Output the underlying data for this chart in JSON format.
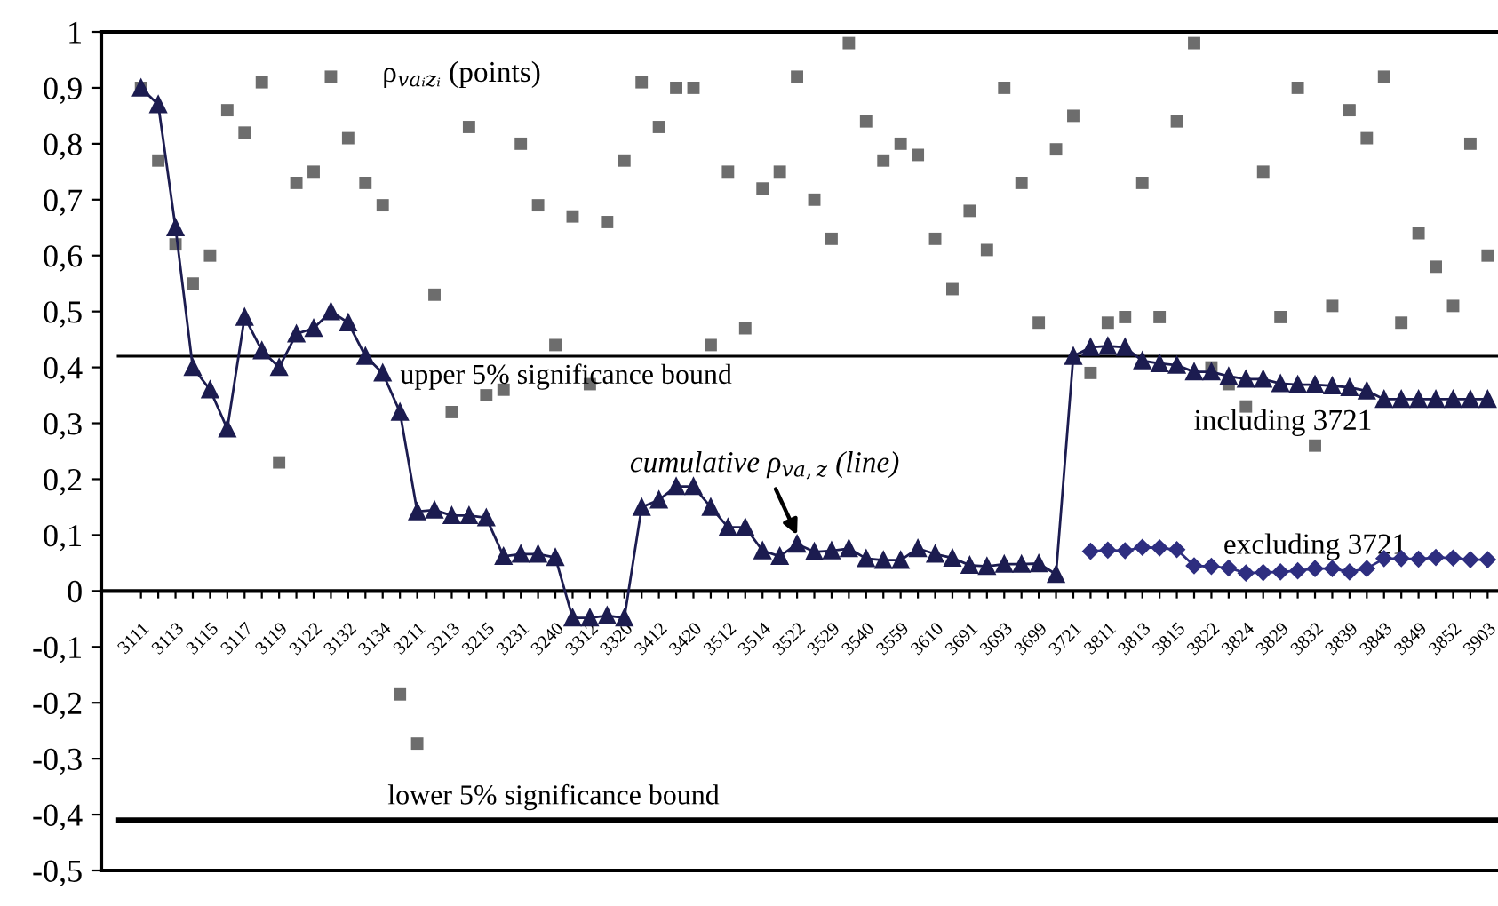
{
  "chart_data": {
    "type": "line",
    "categories": [
      "3111",
      null,
      "3113",
      null,
      "3115",
      null,
      "3117",
      null,
      "3119",
      null,
      "3122",
      null,
      "3132",
      null,
      "3134",
      null,
      "3211",
      null,
      "3213",
      null,
      "3215",
      null,
      "3231",
      null,
      "3240",
      null,
      "3312",
      null,
      "3320",
      null,
      "3412",
      null,
      "3420",
      null,
      "3512",
      null,
      "3514",
      null,
      "3522",
      null,
      "3529",
      null,
      "3540",
      null,
      "3559",
      null,
      "3610",
      null,
      "3691",
      null,
      "3693",
      null,
      "3699",
      null,
      "3721",
      null,
      "3811",
      null,
      "3813",
      null,
      "3815",
      null,
      "3822",
      null,
      "3824",
      null,
      "3829",
      null,
      "3832",
      null,
      "3839",
      null,
      "3843",
      null,
      "3849",
      null,
      "3852",
      null,
      "3903"
    ],
    "series": [
      {
        "name": "ρ$_{vaᵢzᵢ}$ (points)",
        "type": "scatter",
        "marker": "square",
        "color": "#6d6d6d",
        "values": [
          0.9,
          0.77,
          0.62,
          0.55,
          0.6,
          0.86,
          0.82,
          0.91,
          0.23,
          0.73,
          0.75,
          0.92,
          0.81,
          0.73,
          0.69,
          -0.185,
          -0.273,
          0.53,
          0.32,
          0.83,
          0.35,
          0.36,
          0.8,
          0.69,
          0.44,
          0.67,
          0.37,
          0.66,
          0.77,
          0.91,
          0.83,
          0.9,
          0.9,
          0.44,
          0.75,
          0.47,
          0.72,
          0.75,
          0.92,
          0.7,
          0.63,
          0.98,
          0.84,
          0.77,
          0.8,
          0.78,
          0.63,
          0.54,
          0.68,
          0.61,
          0.9,
          0.73,
          0.48,
          0.79,
          0.85,
          0.39,
          0.48,
          0.49,
          0.73,
          0.49,
          0.84,
          0.98,
          0.4,
          0.37,
          0.33,
          0.75,
          0.49,
          0.9,
          0.26,
          0.51,
          0.86,
          0.81,
          0.92,
          0.48,
          0.64,
          0.58,
          0.51,
          0.8,
          0.6
        ]
      },
      {
        "name": "including 3721",
        "marker": "triangle",
        "color": "#1c1c50",
        "values": [
          0.9,
          0.87,
          0.65,
          0.4,
          0.36,
          0.29,
          0.49,
          0.43,
          0.4,
          0.46,
          0.47,
          0.5,
          0.48,
          0.42,
          0.39,
          0.32,
          0.142,
          0.145,
          0.135,
          0.135,
          0.131,
          0.062,
          0.066,
          0.066,
          0.06,
          -0.048,
          -0.048,
          -0.044,
          -0.048,
          0.15,
          0.163,
          0.187,
          0.187,
          0.15,
          0.114,
          0.114,
          0.072,
          0.062,
          0.084,
          0.07,
          0.072,
          0.076,
          0.058,
          0.055,
          0.055,
          0.076,
          0.066,
          0.059,
          0.046,
          0.044,
          0.048,
          0.048,
          0.049,
          0.03,
          0.42,
          0.436,
          0.438,
          0.436,
          0.412,
          0.407,
          0.404,
          0.392,
          0.392,
          0.384,
          0.379,
          0.379,
          0.371,
          0.369,
          0.369,
          0.367,
          0.364,
          0.358,
          0.343,
          0.343,
          0.343,
          0.343,
          0.343,
          0.343,
          0.343
        ]
      },
      {
        "name": "excluding 3721",
        "marker": "diamond",
        "color": "#2e2e80",
        "values": [
          null,
          null,
          null,
          null,
          null,
          null,
          null,
          null,
          null,
          null,
          null,
          null,
          null,
          null,
          null,
          null,
          null,
          null,
          null,
          null,
          null,
          null,
          null,
          null,
          null,
          null,
          null,
          null,
          null,
          null,
          null,
          null,
          null,
          null,
          null,
          null,
          null,
          null,
          null,
          null,
          null,
          null,
          null,
          null,
          null,
          null,
          null,
          null,
          null,
          null,
          null,
          null,
          null,
          null,
          null,
          0.071,
          0.073,
          0.072,
          0.078,
          0.077,
          0.074,
          0.045,
          0.044,
          0.041,
          0.032,
          0.033,
          0.034,
          0.036,
          0.04,
          0.04,
          0.034,
          0.04,
          0.058,
          0.058,
          0.057,
          0.06,
          0.059,
          0.056,
          0.056
        ]
      }
    ],
    "ylim": [
      -0.5,
      1
    ],
    "yticks": [
      {
        "value": -0.5,
        "label": "-0,5"
      },
      {
        "value": -0.4,
        "label": "-0,4"
      },
      {
        "value": -0.3,
        "label": "-0,3"
      },
      {
        "value": -0.2,
        "label": "-0,2"
      },
      {
        "value": -0.1,
        "label": "-0,1"
      },
      0,
      {
        "value": 0.1,
        "label": "0,1"
      },
      {
        "value": 0.2,
        "label": "0,2"
      },
      {
        "value": 0.3,
        "label": "0,3"
      },
      {
        "value": 0.4,
        "label": "0,4"
      },
      {
        "value": 0.5,
        "label": "0,5"
      },
      {
        "value": 0.6,
        "label": "0,6"
      },
      {
        "value": 0.7,
        "label": "0,7"
      },
      {
        "value": 0.8,
        "label": "0,8"
      },
      {
        "value": 0.9,
        "label": "0,9"
      },
      1
    ],
    "ref_lines": [
      {
        "axis": "y",
        "value": 0.42,
        "label": "upper 5% significance bound",
        "color": "#000000"
      },
      {
        "axis": "y",
        "value": -0.41,
        "label": "lower 5% significance bound",
        "color": "#000000"
      }
    ],
    "annotations": [
      {
        "text": "cumulative ρ$_{va,z}$ (line)",
        "x": "3522",
        "y": 0.1
      }
    ],
    "grid": false,
    "legend": false
  }
}
